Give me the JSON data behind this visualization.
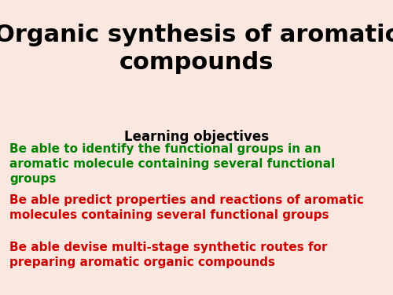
{
  "background_color": "#FAE8E0",
  "title_line1": "Organic synthesis of aromatic",
  "title_line2": "compounds",
  "title_color": "#000000",
  "title_fontsize": 22,
  "subtitle": "Learning objectives",
  "subtitle_color": "#000000",
  "subtitle_fontsize": 12,
  "objectives": [
    {
      "text": "Be able to identify the functional groups in an\naromatic molecule containing several functional\ngroups",
      "color": "#008000",
      "fontsize": 11
    },
    {
      "text": "Be able predict properties and reactions of aromatic\nmolecules containing several functional groups",
      "color": "#CC0000",
      "fontsize": 11
    },
    {
      "text": "Be able devise multi-stage synthetic routes for\npreparing aromatic organic compounds",
      "color": "#CC0000",
      "fontsize": 11
    }
  ]
}
